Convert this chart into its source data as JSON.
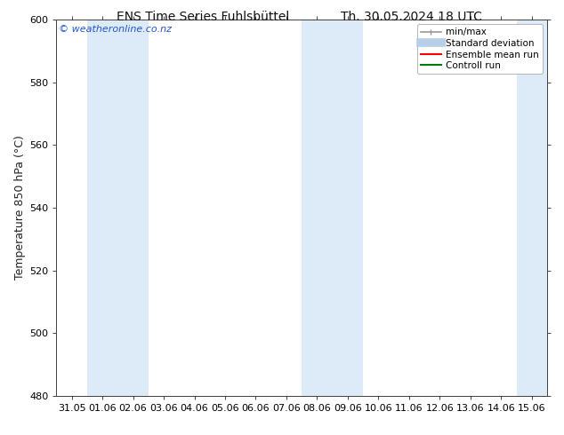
{
  "title_left": "ENS Time Series Fuhlsbüttel",
  "title_right": "Th. 30.05.2024 18 UTC",
  "ylabel": "Temperature 850 hPa (°C)",
  "ylim": [
    480,
    600
  ],
  "yticks": [
    480,
    500,
    520,
    540,
    560,
    580,
    600
  ],
  "x_labels": [
    "31.05",
    "01.06",
    "02.06",
    "03.06",
    "04.06",
    "05.06",
    "06.06",
    "07.06",
    "08.06",
    "09.06",
    "10.06",
    "11.06",
    "12.06",
    "13.06",
    "14.06",
    "15.06"
  ],
  "bg_color": "#ffffff",
  "plot_bg_color": "#ffffff",
  "shaded_band_color": "#ddeaf8",
  "shaded_columns": [
    1,
    2,
    8,
    9,
    15
  ],
  "watermark_text": "© weatheronline.co.nz",
  "watermark_color": "#2255cc",
  "legend_items": [
    {
      "label": "min/max",
      "color": "#999999",
      "lw": 1.2
    },
    {
      "label": "Standard deviation",
      "color": "#b8cfe8",
      "lw": 7
    },
    {
      "label": "Ensemble mean run",
      "color": "#ff0000",
      "lw": 1.5
    },
    {
      "label": "Controll run",
      "color": "#007700",
      "lw": 1.5
    }
  ],
  "title_fontsize": 10,
  "ylabel_fontsize": 9,
  "tick_fontsize": 8,
  "legend_fontsize": 7.5,
  "watermark_fontsize": 8
}
